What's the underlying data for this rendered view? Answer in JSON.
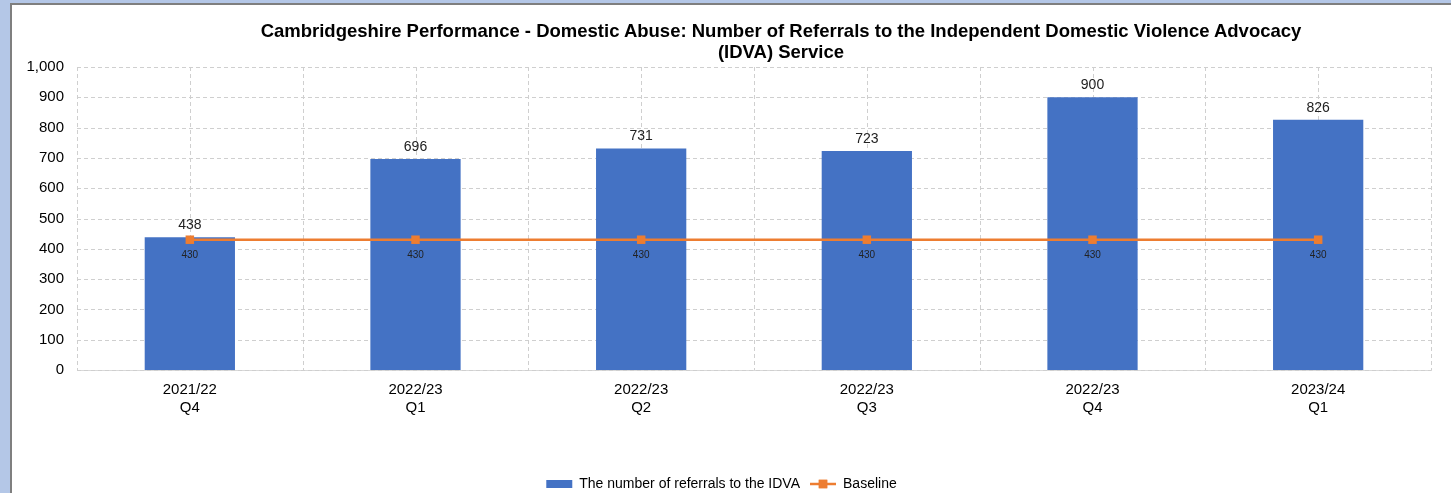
{
  "chart_data": {
    "type": "bar",
    "title": "Cambridgeshire Performance - Domestic Abuse: Number of Referrals to the Independent Domestic Violence Advocacy (IDVA) Service",
    "categories": [
      "2021/22\nQ4",
      "2022/23\nQ1",
      "2022/23\nQ2",
      "2022/23\nQ3",
      "2022/23\nQ4",
      "2023/24\nQ1"
    ],
    "series": [
      {
        "name": "The number of referrals to the IDVA",
        "color": "#4472c4",
        "values": [
          438,
          696,
          731,
          723,
          900,
          826
        ]
      },
      {
        "name": "Baseline",
        "type": "line",
        "color": "#ed7d31",
        "values": [
          430,
          430,
          430,
          430,
          430,
          430
        ]
      }
    ],
    "ylim": [
      0,
      1000
    ],
    "yticks": [
      0,
      100,
      200,
      300,
      400,
      500,
      600,
      700,
      800,
      900,
      {
        "value": 1000,
        "label": "1,000"
      }
    ],
    "grid": true,
    "legend": "bottom",
    "data_labels": true,
    "marker": "square"
  }
}
